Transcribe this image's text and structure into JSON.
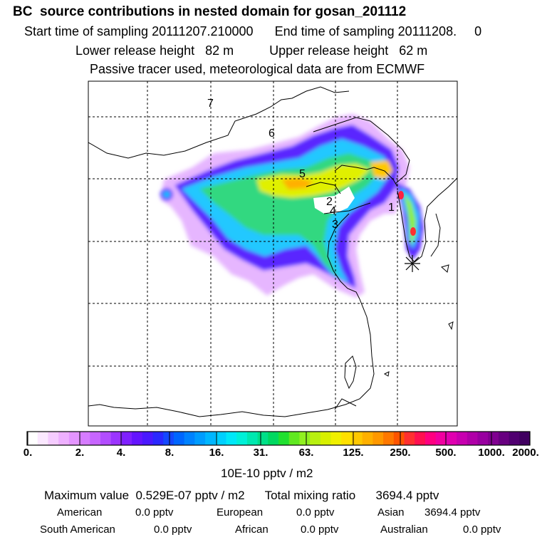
{
  "header": {
    "title": "BC  source contributions in nested domain for gosan_201112",
    "start_label": "Start time of sampling 20111207.210000",
    "end_label": "End time of sampling 20111208.     0",
    "lower_label": "Lower release height   82 m",
    "upper_label": "Upper release height   62 m",
    "tracer_note": "Passive tracer used, meteorological data are from ECMWF"
  },
  "map": {
    "region_labels": [
      "1",
      "2",
      "3",
      "4",
      "5",
      "6",
      "7"
    ],
    "receptor_icon": "asterisk-marker-icon"
  },
  "colorbar": {
    "ticks": [
      "0.",
      "2.",
      "4.",
      "8.",
      "16.",
      "31.",
      "63.",
      "125.",
      "250.",
      "500.",
      "1000.",
      "2000."
    ],
    "colors": [
      "#ffffff",
      "#fbe8ff",
      "#f5ccff",
      "#eeb0ff",
      "#e495ff",
      "#d67cff",
      "#c765ff",
      "#b24dff",
      "#9b34ff",
      "#7f20ff",
      "#6414ff",
      "#4a18ff",
      "#2b28ff",
      "#1448ff",
      "#0066ff",
      "#0082ff",
      "#009cff",
      "#00b6ff",
      "#00d0ff",
      "#00e8f8",
      "#00f0d8",
      "#00e8b0",
      "#00e088",
      "#00d860",
      "#20e030",
      "#60e820",
      "#90f020",
      "#b8f010",
      "#d8f000",
      "#f0f000",
      "#ffe000",
      "#ffc800",
      "#ffb000",
      "#ff9800",
      "#ff7800",
      "#ff5400",
      "#ff3030",
      "#ff1050",
      "#ff0080",
      "#f000a0",
      "#e000b0",
      "#c800b0",
      "#b000a8",
      "#9800a0",
      "#800090",
      "#680080",
      "#500070",
      "#400060"
    ],
    "unit": "10E-10 pptv / m2"
  },
  "stats": {
    "max_line": "Maximum value  0.529E-07 pptv / m2      Total mixing ratio      3694.4 pptv",
    "american_label": "American",
    "american_value": "0.0 pptv",
    "european_label": "European",
    "european_value": "0.0 pptv",
    "asian_label": "Asian",
    "asian_value": "3694.4 pptv",
    "south_american_label": "South American",
    "south_american_value": "0.0 pptv",
    "african_label": "African",
    "african_value": "0.0 pptv",
    "australian_label": "Australian",
    "australian_value": "0.0 pptv"
  }
}
